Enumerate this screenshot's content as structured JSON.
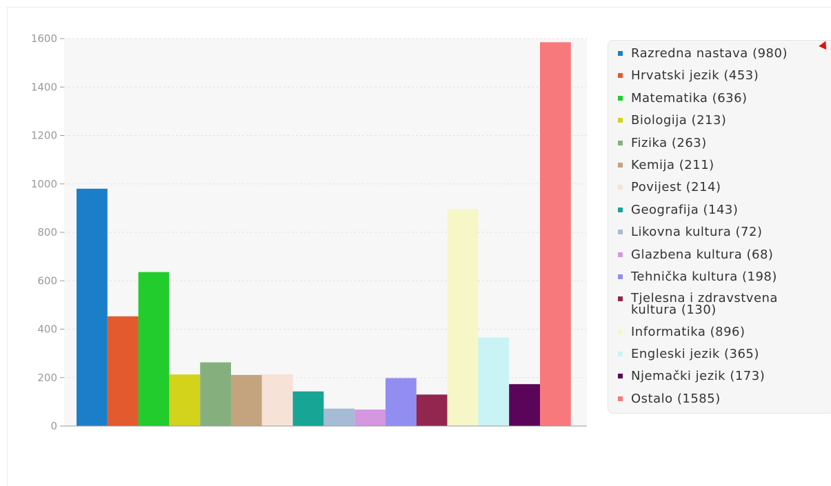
{
  "chart_data": {
    "type": "bar",
    "title": "",
    "xlabel": "",
    "ylabel": "",
    "ylim": [
      0,
      1600
    ],
    "yticks": [
      "0",
      "200",
      "400",
      "600",
      "800",
      "1000",
      "1200",
      "1400",
      "1600"
    ],
    "grid": true,
    "legend_position": "right",
    "categories": [
      "Razredna nastava",
      "Hrvatski jezik",
      "Matematika",
      "Biologija",
      "Fizika",
      "Kemija",
      "Povijest",
      "Geografija",
      "Likovna kultura",
      "Glazbena kultura",
      "Tehnička kultura",
      "Tjelesna i zdravstvena kultura",
      "Informatika",
      "Engleski jezik",
      "Njemački jezik",
      "Ostalo"
    ],
    "values": [
      980,
      453,
      636,
      213,
      263,
      211,
      214,
      143,
      72,
      68,
      198,
      130,
      896,
      365,
      173,
      1585
    ],
    "colors": [
      "#1a7fc8",
      "#e35a2e",
      "#21cc2c",
      "#d3d31c",
      "#85b07e",
      "#c4a47e",
      "#f7e2d8",
      "#17a596",
      "#a6bcd6",
      "#d597e0",
      "#928ef1",
      "#92264f",
      "#f7f6c7",
      "#c9f3f5",
      "#5a045a",
      "#f8797b"
    ],
    "legend": [
      "Razredna nastava (980)",
      "Hrvatski jezik (453)",
      "Matematika (636)",
      "Biologija (213)",
      "Fizika (263)",
      "Kemija (211)",
      "Povijest (214)",
      "Geografija (143)",
      "Likovna kultura (72)",
      "Glazbena kultura (68)",
      "Tehnička kultura (198)",
      "Tjelesna i zdravstvena kultura (130)",
      "Informatika (896)",
      "Engleski jezik (365)",
      "Njemački jezik (173)",
      "Ostalo (1585)"
    ]
  }
}
